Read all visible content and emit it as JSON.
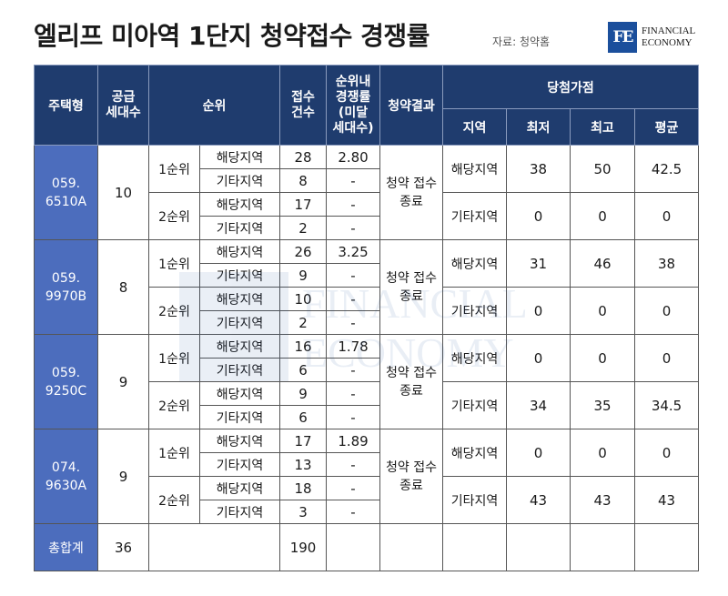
{
  "header": {
    "title": "엘리프 미아역 1단지 청약접수 경쟁률",
    "source": "자료: 청약홈",
    "logo": {
      "mark": "FE",
      "line1": "FINANCIAL",
      "line2": "ECONOMY"
    }
  },
  "table": {
    "headers": {
      "type": "주택형",
      "supply": "공급\n세대수",
      "rank": "순위",
      "applicants": "접수\n건수",
      "competition": "순위내\n경쟁률\n(미달\n세대수)",
      "result": "청약결과",
      "price_group": "당첨가점",
      "region": "지역",
      "min": "최저",
      "max": "최고",
      "avg": "평균"
    },
    "groups": [
      {
        "type": "059.\n6510A",
        "supply": "10",
        "result": "청약 접수\n종료",
        "ranks": [
          {
            "label": "1순위",
            "rows": [
              {
                "region": "해당지역",
                "count": "28",
                "rate": "2.80"
              },
              {
                "region": "기타지역",
                "count": "8",
                "rate": "-"
              }
            ]
          },
          {
            "label": "2순위",
            "rows": [
              {
                "region": "해당지역",
                "count": "17",
                "rate": "-"
              },
              {
                "region": "기타지역",
                "count": "2",
                "rate": "-"
              }
            ]
          }
        ],
        "scores": [
          {
            "region": "해당지역",
            "min": "38",
            "max": "50",
            "avg": "42.5"
          },
          {
            "region": "기타지역",
            "min": "0",
            "max": "0",
            "avg": "0"
          }
        ]
      },
      {
        "type": "059.\n9970B",
        "supply": "8",
        "result": "청약 접수\n종료",
        "ranks": [
          {
            "label": "1순위",
            "rows": [
              {
                "region": "해당지역",
                "count": "26",
                "rate": "3.25"
              },
              {
                "region": "기타지역",
                "count": "9",
                "rate": "-"
              }
            ]
          },
          {
            "label": "2순위",
            "rows": [
              {
                "region": "해당지역",
                "count": "10",
                "rate": "-"
              },
              {
                "region": "기타지역",
                "count": "2",
                "rate": "-"
              }
            ]
          }
        ],
        "scores": [
          {
            "region": "해당지역",
            "min": "31",
            "max": "46",
            "avg": "38"
          },
          {
            "region": "기타지역",
            "min": "0",
            "max": "0",
            "avg": "0"
          }
        ]
      },
      {
        "type": "059.\n9250C",
        "supply": "9",
        "result": "청약 접수\n종료",
        "ranks": [
          {
            "label": "1순위",
            "rows": [
              {
                "region": "해당지역",
                "count": "16",
                "rate": "1.78"
              },
              {
                "region": "기타지역",
                "count": "6",
                "rate": "-"
              }
            ]
          },
          {
            "label": "2순위",
            "rows": [
              {
                "region": "해당지역",
                "count": "9",
                "rate": "-"
              },
              {
                "region": "기타지역",
                "count": "6",
                "rate": "-"
              }
            ]
          }
        ],
        "scores": [
          {
            "region": "해당지역",
            "min": "0",
            "max": "0",
            "avg": "0"
          },
          {
            "region": "기타지역",
            "min": "34",
            "max": "35",
            "avg": "34.5"
          }
        ]
      },
      {
        "type": "074.\n9630A",
        "supply": "9",
        "result": "청약 접수\n종료",
        "ranks": [
          {
            "label": "1순위",
            "rows": [
              {
                "region": "해당지역",
                "count": "17",
                "rate": "1.89"
              },
              {
                "region": "기타지역",
                "count": "13",
                "rate": "-"
              }
            ]
          },
          {
            "label": "2순위",
            "rows": [
              {
                "region": "해당지역",
                "count": "18",
                "rate": "-"
              },
              {
                "region": "기타지역",
                "count": "3",
                "rate": "-"
              }
            ]
          }
        ],
        "scores": [
          {
            "region": "해당지역",
            "min": "0",
            "max": "0",
            "avg": "0"
          },
          {
            "region": "기타지역",
            "min": "43",
            "max": "43",
            "avg": "43"
          }
        ]
      }
    ],
    "total": {
      "label": "총합계",
      "supply": "36",
      "applicants": "190"
    }
  },
  "watermark": {
    "line1": "FINANCIAL",
    "line2": "ECONOMY"
  },
  "colors": {
    "header_bg": "#1f3c6e",
    "type_bg": "#4c6dbd",
    "logo": "#1b4f9c"
  }
}
